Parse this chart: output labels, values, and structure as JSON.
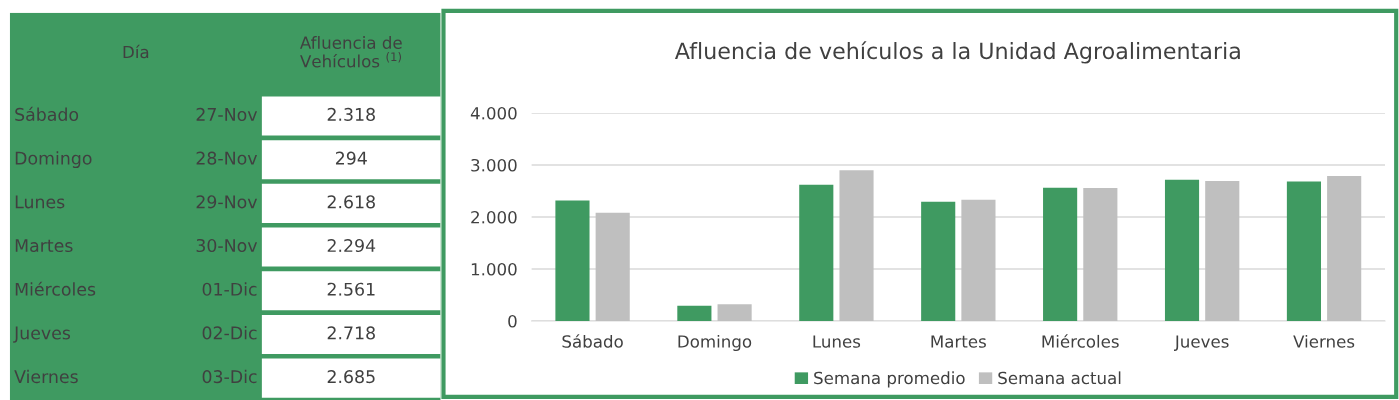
{
  "chart_data": [
    {
      "type": "other",
      "annotations": [
        "Día",
        "Afluencia de\nVehículos $^{(1)}$",
        "Sábado",
        "27-Nov",
        "2.318",
        "Domingo",
        "28-Nov",
        "294",
        "Lunes",
        "29-Nov",
        "2.618",
        "Martes",
        "30-Nov",
        "2.294",
        "Miércoles",
        "01-Dic",
        "2.561",
        "Jueves",
        "02-Dic",
        "2.718",
        "Viernes",
        "03-Dic",
        "2.685"
      ]
    },
    {
      "type": "bar",
      "title": "Afluencia de vehículos a la Unidad Agroalimentaria",
      "categories": [
        "Sábado",
        "Domingo",
        "Lunes",
        "Martes",
        "Miércoles",
        "Jueves",
        "Viernes"
      ],
      "series": [
        {
          "name": "Semana promedio",
          "color": "#3f9a61",
          "values": [
            2318,
            294,
            2618,
            2294,
            2561,
            2718,
            2685
          ]
        },
        {
          "name": "Semana actual",
          "color": "#bfbfbf",
          "values": [
            2080,
            320,
            2900,
            2330,
            2560,
            2690,
            2790
          ]
        }
      ],
      "ylim": [
        0,
        4000
      ],
      "yticks": [
        {
          "value": 0,
          "label": "0"
        },
        {
          "value": 1000,
          "label": "1.000"
        },
        {
          "value": 2000,
          "label": "2.000"
        },
        {
          "value": 3000,
          "label": "3.000"
        },
        {
          "value": 4000,
          "label": "4.000"
        }
      ],
      "grid": "y",
      "legend": "bottom"
    }
  ]
}
